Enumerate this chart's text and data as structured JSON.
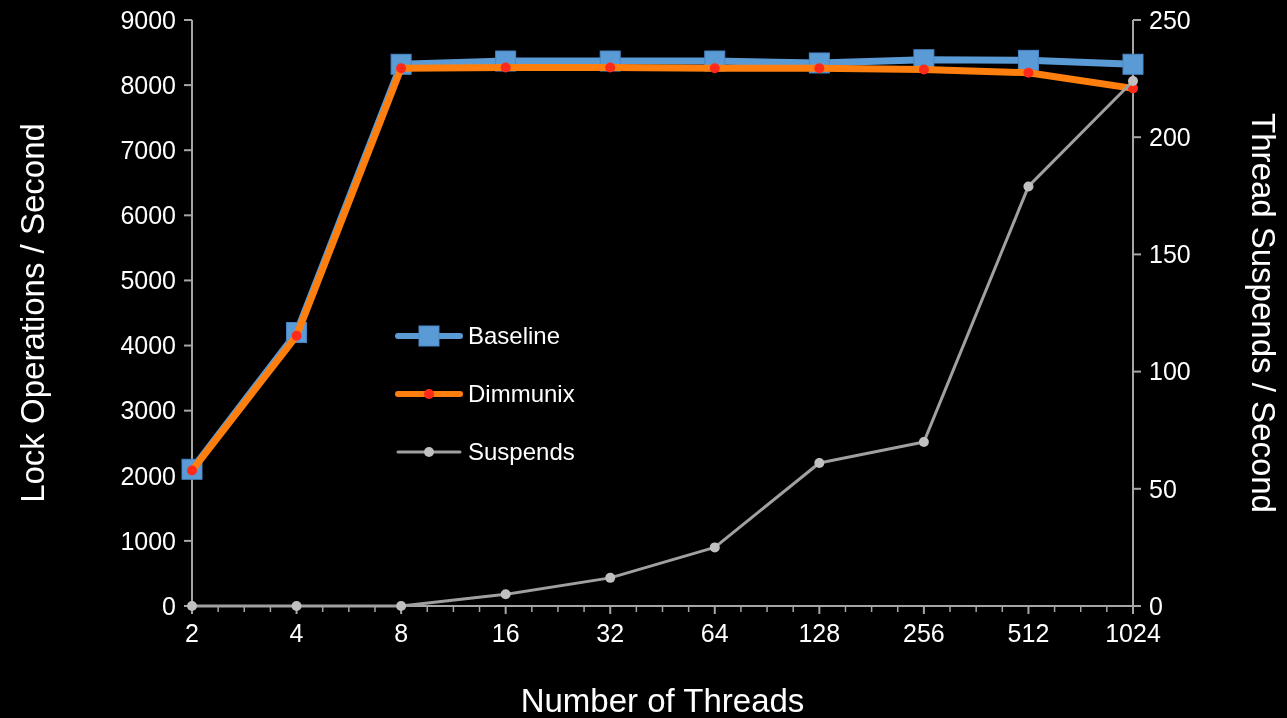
{
  "chart_data": {
    "type": "line",
    "xlabel": "Number of Threads",
    "ylabel": "Lock Operations / Second",
    "y2label": "Thread Suspends / Second",
    "categories": [
      "2",
      "4",
      "8",
      "16",
      "32",
      "64",
      "128",
      "256",
      "512",
      "1024"
    ],
    "ylim": [
      0,
      9000
    ],
    "yticks": [
      0,
      1000,
      2000,
      3000,
      4000,
      5000,
      6000,
      7000,
      8000,
      9000
    ],
    "y2lim": [
      0,
      250
    ],
    "y2ticks": [
      0,
      50,
      100,
      150,
      200,
      250
    ],
    "grid": false,
    "legend": "center",
    "series": [
      {
        "name": "Baseline",
        "color": "#5b9bd5",
        "marker": "square",
        "values": [
          2100,
          4200,
          8320,
          8370,
          8370,
          8370,
          8340,
          8390,
          8380,
          8320
        ]
      },
      {
        "name": "Dimmunix",
        "color": "#ff7f0e",
        "marker": "circle",
        "values": [
          2080,
          4150,
          8260,
          8270,
          8270,
          8260,
          8260,
          8240,
          8190,
          7950
        ]
      },
      {
        "name": "Suspends",
        "color": "#a0a0a0",
        "marker": "circle",
        "axis": "y2",
        "values": [
          0,
          0,
          0,
          5,
          12,
          25,
          61,
          70,
          179,
          224
        ]
      }
    ]
  }
}
